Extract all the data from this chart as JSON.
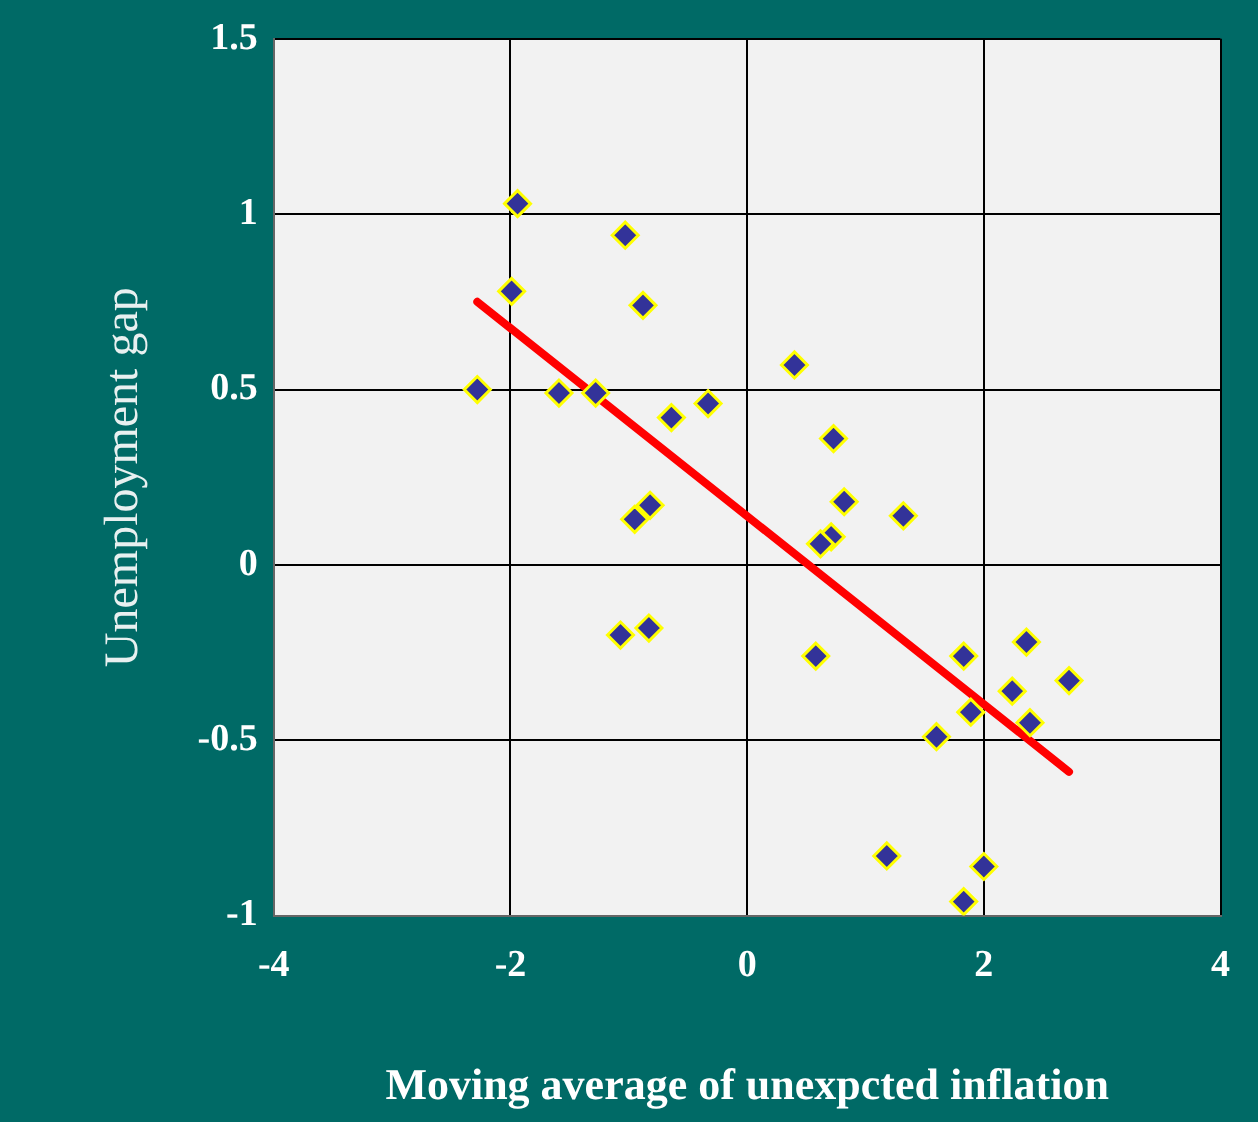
{
  "chart_data": {
    "type": "scatter",
    "xlabel": "Moving average of unexpcted inflation",
    "ylabel": "Unemployment gap",
    "xlim": [
      -4,
      4
    ],
    "xticks": [
      -4,
      -2,
      0,
      2,
      4
    ],
    "ylim": [
      -1,
      1.5
    ],
    "yticks": [
      -1,
      -0.5,
      0,
      0.5,
      1,
      1.5
    ],
    "grid": true,
    "marker": "diamond",
    "series": [
      {
        "color": "#333399",
        "x": [
          -1.94,
          -1.03,
          -1.99,
          -0.88,
          -2.28,
          -1.59,
          -1.28,
          -0.64,
          -0.33,
          0.4,
          0.73,
          0.82,
          1.32,
          0.71,
          0.62,
          -0.82,
          -0.95,
          -1.07,
          -0.83,
          0.58,
          1.83,
          2.36,
          2.24,
          2.72,
          1.89,
          2.39,
          1.6,
          1.18,
          2.0,
          1.83
        ],
        "values": [
          1.03,
          0.94,
          0.78,
          0.74,
          0.5,
          0.49,
          0.49,
          0.42,
          0.46,
          0.57,
          0.36,
          0.18,
          0.14,
          0.08,
          0.06,
          0.17,
          0.13,
          -0.2,
          -0.18,
          -0.26,
          -0.26,
          -0.22,
          -0.36,
          -0.33,
          -0.42,
          -0.45,
          -0.49,
          -0.83,
          -0.86,
          -0.96
        ]
      },
      {
        "type": "line",
        "marker": "none",
        "color": "#ff0000",
        "x": [
          -2.28,
          2.72
        ],
        "values": [
          0.75,
          -0.59
        ]
      }
    ]
  }
}
